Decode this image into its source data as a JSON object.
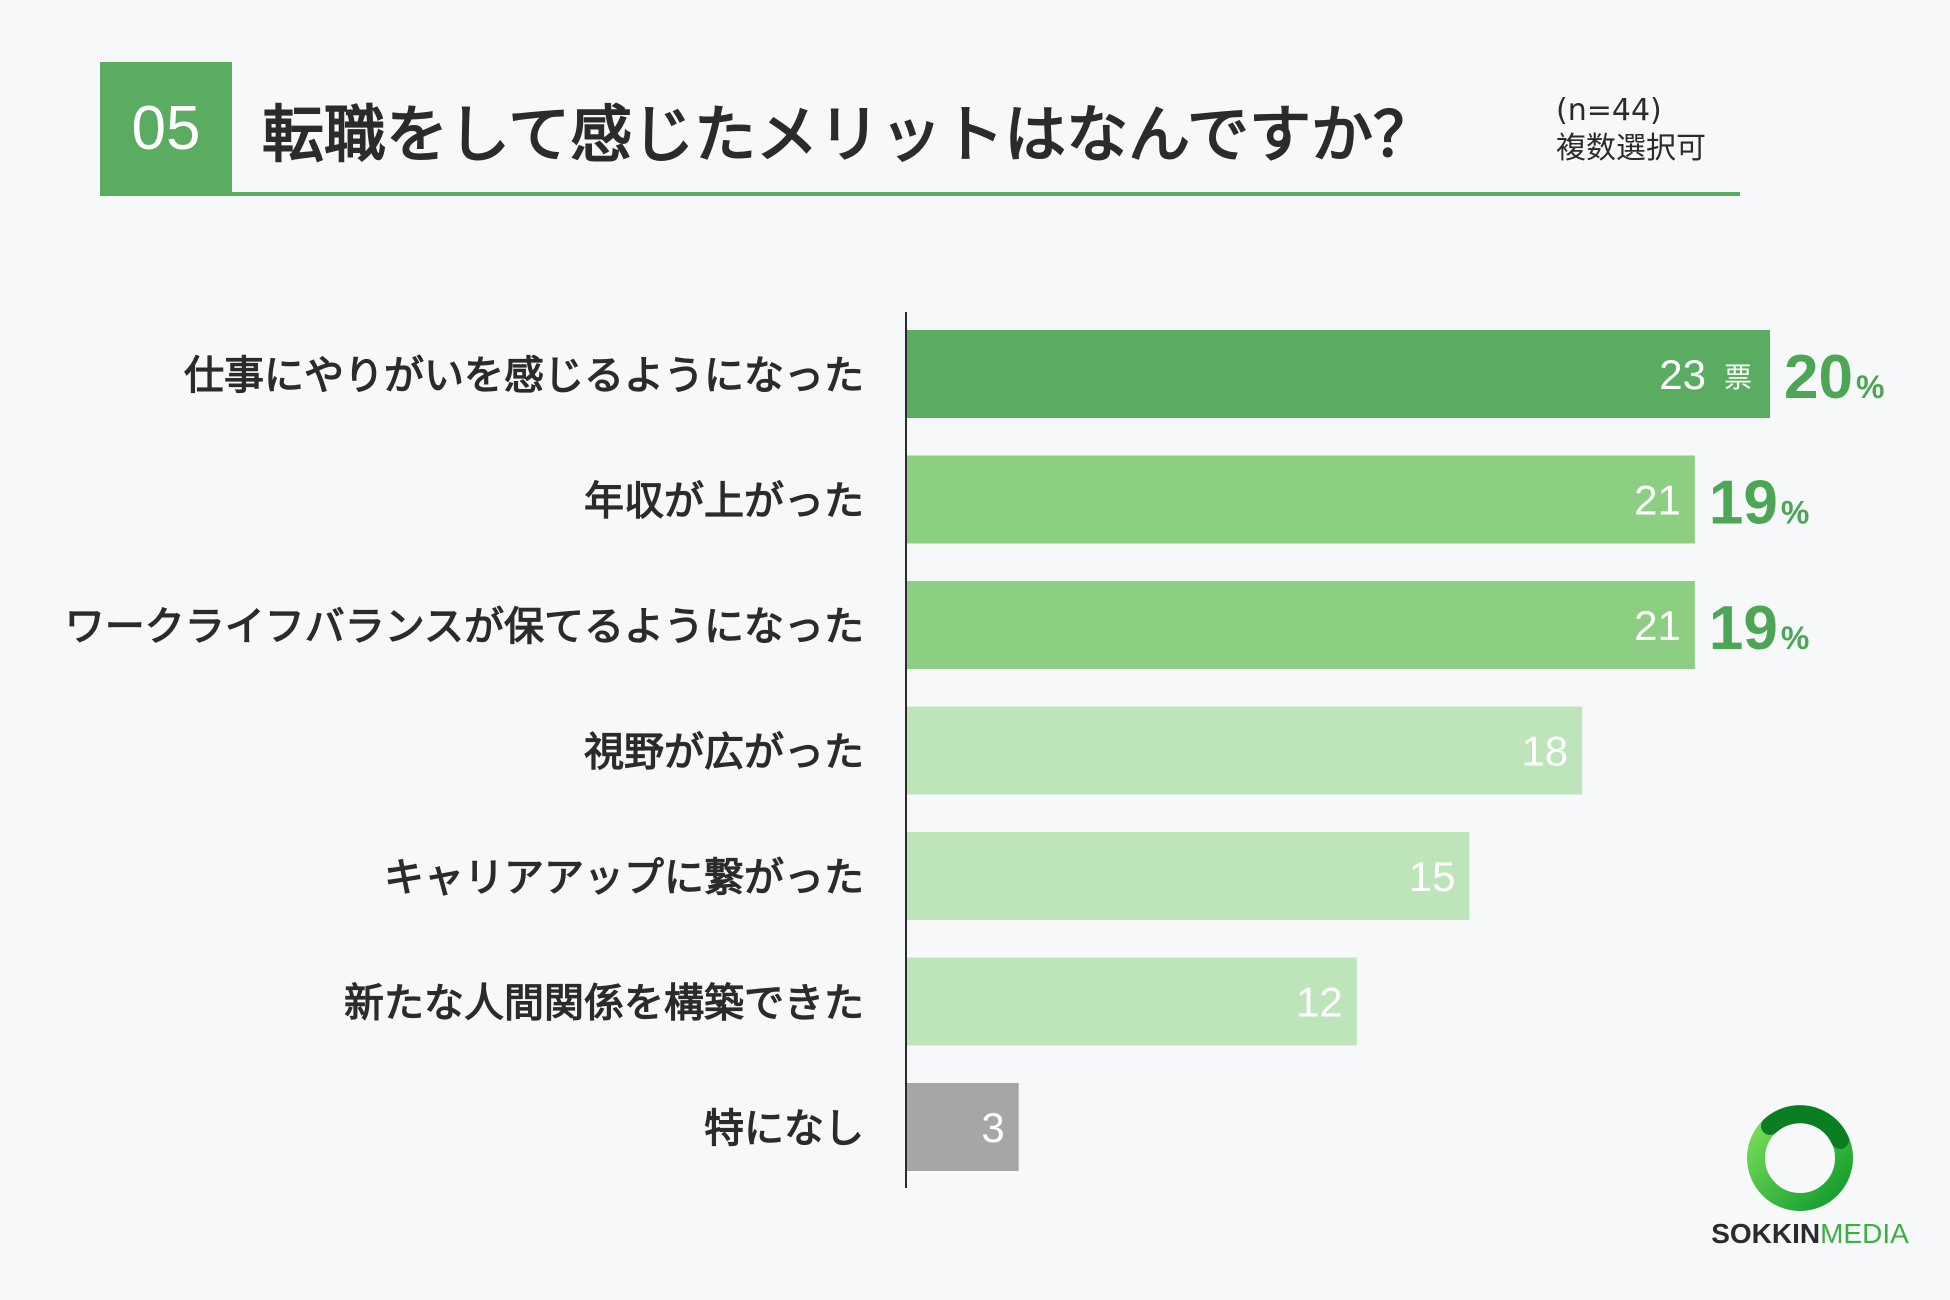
{
  "header": {
    "question_number": "05",
    "title": "転職をして感じたメリットはなんですか？",
    "sample_size": "(n=44)",
    "selection_note": "複数選択可"
  },
  "colors": {
    "accent": "#5aad60",
    "dark_bar": "#5aad60",
    "mid_bar": "#8ccf82",
    "light_bar": "#bde5b9",
    "none_bar": "#a6a6a6",
    "percent_text": "#4ca653"
  },
  "chart_data": {
    "type": "bar",
    "orientation": "horizontal",
    "categories": [
      "仕事にやりがいを感じるようになった",
      "年収が上がった",
      "ワークライフバランスが保てるようになった",
      "視野が広がった",
      "キャリアアップに繋がった",
      "新たな人間関係を構築できた",
      "特になし"
    ],
    "values": [
      23,
      21,
      21,
      18,
      15,
      12,
      3
    ],
    "value_labels": [
      "23",
      "21",
      "21",
      "18",
      "15",
      "12",
      "3"
    ],
    "unit_label": "票",
    "percent_values": [
      20,
      19,
      19,
      null,
      null,
      null,
      null
    ],
    "percent_unit": "%",
    "bar_colors": [
      "#5aad60",
      "#8ccf82",
      "#8ccf82",
      "#bde5b9",
      "#bde5b9",
      "#bde5b9",
      "#a6a6a6"
    ],
    "xlim": [
      0,
      23
    ],
    "legend": "none",
    "grid": false
  },
  "logo": {
    "brand_part1": "SOKKIN",
    "brand_part2": "MEDIA"
  }
}
